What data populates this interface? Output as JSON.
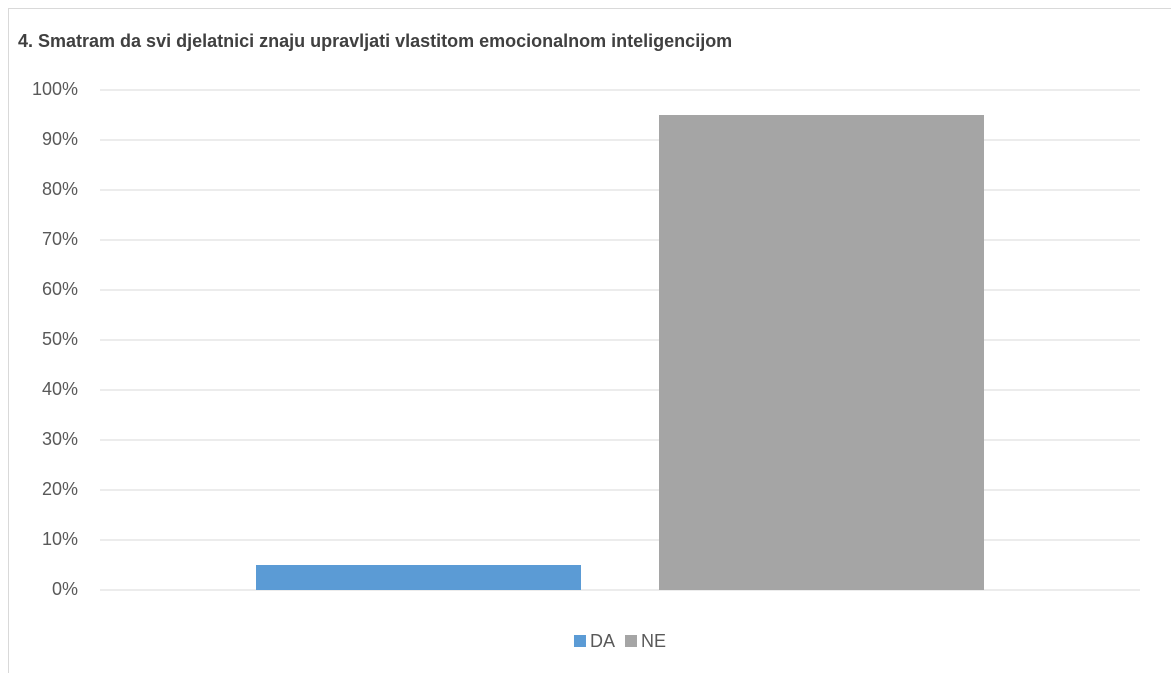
{
  "chart_data": {
    "type": "bar",
    "title": "4. Smatram da svi djelatnici znaju upravljati vlastitom emocionalnom inteligencijom",
    "categories": [
      null
    ],
    "series": [
      {
        "name": "DA",
        "color": "#5b9bd5",
        "values": [
          5
        ]
      },
      {
        "name": "NE",
        "color": "#a5a5a5",
        "values": [
          95
        ]
      }
    ],
    "ylim": [
      0,
      100
    ],
    "yticks": [
      {
        "value": 0,
        "label": "0%"
      },
      {
        "value": 10,
        "label": "10%"
      },
      {
        "value": 20,
        "label": "20%"
      },
      {
        "value": 30,
        "label": "30%"
      },
      {
        "value": 40,
        "label": "40%"
      },
      {
        "value": 50,
        "label": "50%"
      },
      {
        "value": 60,
        "label": "60%"
      },
      {
        "value": 70,
        "label": "70%"
      },
      {
        "value": 80,
        "label": "80%"
      },
      {
        "value": 90,
        "label": "90%"
      },
      {
        "value": 100,
        "label": "100%"
      }
    ],
    "grid": true,
    "legend": "bottom"
  }
}
